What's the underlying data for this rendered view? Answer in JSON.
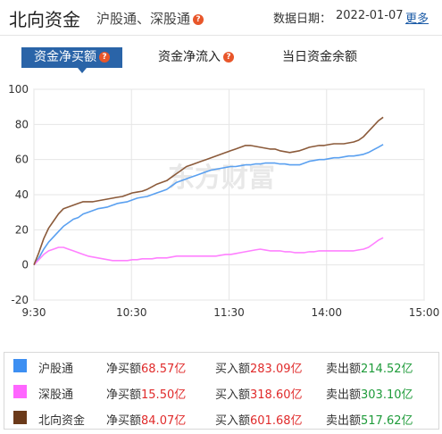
{
  "header": {
    "title": "北向资金",
    "subtitle": "沪股通、深股通",
    "date_label": "数据日期：",
    "date_value": "2022-01-07",
    "more_label": "更多",
    "help_glyph": "?"
  },
  "tabs": [
    {
      "label": "资金净买额",
      "active": true
    },
    {
      "label": "资金净流入",
      "active": false
    },
    {
      "label": "当日资金余额",
      "active": false
    }
  ],
  "watermark": "东方财富",
  "chart_data": {
    "type": "line",
    "x_ticks": [
      "9:30",
      "10:30",
      "11:30",
      "14:00",
      "15:00"
    ],
    "y_ticks": [
      "100",
      "80",
      "60",
      "40",
      "20",
      "0",
      "-20"
    ],
    "ylim": [
      -20,
      100
    ],
    "grid": true,
    "series": [
      {
        "name": "沪股通",
        "color": "#5aa0f0",
        "values": [
          0,
          4,
          9,
          13,
          16,
          19,
          22,
          24,
          26,
          27,
          29,
          30,
          31,
          32,
          32.5,
          33,
          34,
          35,
          35.5,
          36,
          37,
          38,
          38.5,
          39,
          40,
          41,
          42,
          43,
          45,
          47,
          48,
          49,
          50,
          51,
          52,
          53,
          54,
          54.5,
          55,
          55.5,
          56,
          56,
          56.5,
          57,
          57,
          57.5,
          57.5,
          58,
          58,
          58,
          57.5,
          57.5,
          57,
          57,
          57,
          58,
          59,
          59.5,
          60,
          60,
          60.5,
          61,
          61,
          61.5,
          62,
          62,
          62.5,
          63,
          64,
          65.5,
          67,
          68.57
        ]
      },
      {
        "name": "深股通",
        "color": "#ff80ff",
        "values": [
          0,
          3,
          6,
          8,
          9,
          10,
          10,
          9,
          8,
          7,
          6,
          5,
          4.5,
          4,
          3.5,
          3,
          2.5,
          2.5,
          2.5,
          2.5,
          3,
          3,
          3.5,
          3.5,
          3.5,
          4,
          4,
          4,
          4.5,
          5,
          5,
          5,
          5,
          5,
          5,
          5,
          5,
          5,
          5.5,
          6,
          6,
          6.5,
          7,
          7.5,
          8,
          8.5,
          9,
          8.5,
          8,
          8,
          8,
          7.5,
          7.5,
          7,
          7,
          7,
          7.5,
          7.5,
          8,
          8,
          8,
          8,
          8,
          8,
          8,
          8,
          8.5,
          9,
          10,
          12,
          14,
          15.5
        ]
      },
      {
        "name": "北向资金",
        "color": "#8b5a3a",
        "values": [
          0,
          7,
          15,
          21,
          25,
          29,
          32,
          33,
          34,
          35,
          36,
          36,
          36,
          36.5,
          37,
          37.5,
          38,
          38.5,
          39,
          40,
          41,
          41.5,
          42,
          43,
          44.5,
          46,
          47,
          48,
          50,
          52,
          54,
          56,
          57,
          58,
          59,
          60,
          61,
          62,
          63,
          64,
          65,
          66,
          67,
          68,
          68,
          67.5,
          67,
          66.5,
          66,
          66,
          65,
          64.5,
          64,
          64.5,
          65,
          66,
          67,
          67.5,
          68,
          68,
          68.5,
          69,
          69,
          69,
          69.5,
          70,
          71,
          73,
          76,
          79,
          82,
          84.07
        ]
      }
    ]
  },
  "legend": [
    {
      "name": "沪股通",
      "color": "#3d8ff2",
      "net_label": "净买额",
      "net": "68.57亿",
      "buy_label": "买入额",
      "buy": "283.09亿",
      "sell_label": "卖出额",
      "sell": "214.52亿"
    },
    {
      "name": "深股通",
      "color": "#ff66ff",
      "net_label": "净买额",
      "net": "15.50亿",
      "buy_label": "买入额",
      "buy": "318.60亿",
      "sell_label": "卖出额",
      "sell": "303.10亿"
    },
    {
      "name": "北向资金",
      "color": "#6b3a1a",
      "net_label": "净买额",
      "net": "84.07亿",
      "buy_label": "买入额",
      "buy": "601.68亿",
      "sell_label": "卖出额",
      "sell": "517.62亿"
    }
  ]
}
